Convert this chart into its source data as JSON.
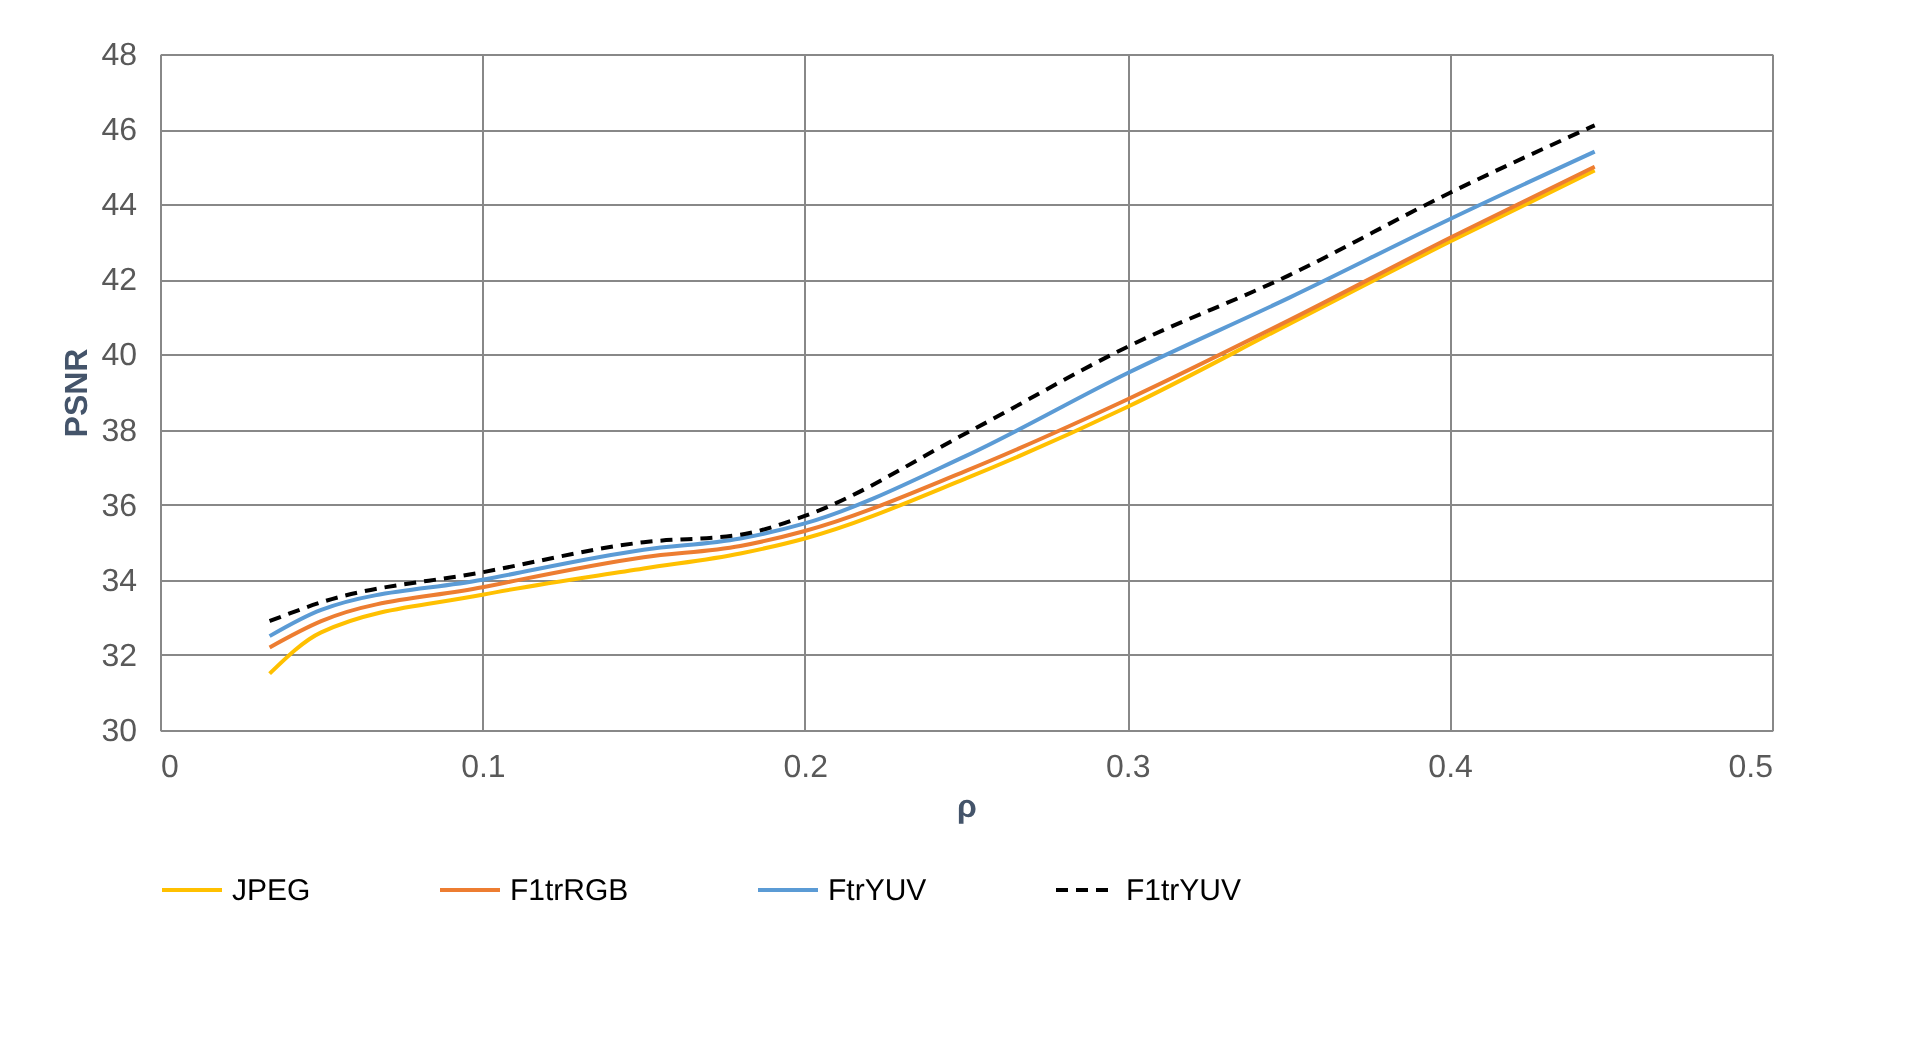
{
  "chart_data": {
    "type": "line",
    "xlabel": "ρ",
    "ylabel": "PSNR",
    "x": [
      0.034,
      0.05,
      0.1,
      0.15,
      0.18,
      0.2,
      0.25,
      0.3,
      0.35,
      0.4,
      0.445
    ],
    "series": [
      {
        "name": "JPEG",
        "color": "#ffc000",
        "line_style": "solid",
        "values": [
          31.5,
          32.6,
          33.6,
          34.3,
          34.7,
          35.1,
          36.7,
          38.6,
          40.8,
          43.0,
          44.9
        ]
      },
      {
        "name": "F1trRGB",
        "color": "#ed7d31",
        "line_style": "solid",
        "values": [
          32.2,
          32.9,
          33.8,
          34.6,
          34.9,
          35.3,
          36.9,
          38.8,
          40.9,
          43.1,
          45.0
        ]
      },
      {
        "name": "FtrYUV",
        "color": "#5b9bd5",
        "line_style": "solid",
        "values": [
          32.5,
          33.2,
          34.0,
          34.8,
          35.1,
          35.5,
          37.3,
          39.5,
          41.5,
          43.6,
          45.4
        ]
      },
      {
        "name": "F1trYUV",
        "color": "#000000",
        "line_style": "dashed",
        "values": [
          32.9,
          33.4,
          34.2,
          35.0,
          35.2,
          35.7,
          37.9,
          40.2,
          42.1,
          44.3,
          46.1
        ]
      }
    ],
    "xlim": [
      0,
      0.5
    ],
    "xticks": [
      0,
      0.1,
      0.2,
      0.3,
      0.4,
      0.5
    ],
    "ylim": [
      30,
      48
    ],
    "yticks": [
      30,
      32,
      34,
      36,
      38,
      40,
      42,
      44,
      46,
      48
    ],
    "grid": true,
    "legend": "bottom",
    "marker": "none"
  }
}
